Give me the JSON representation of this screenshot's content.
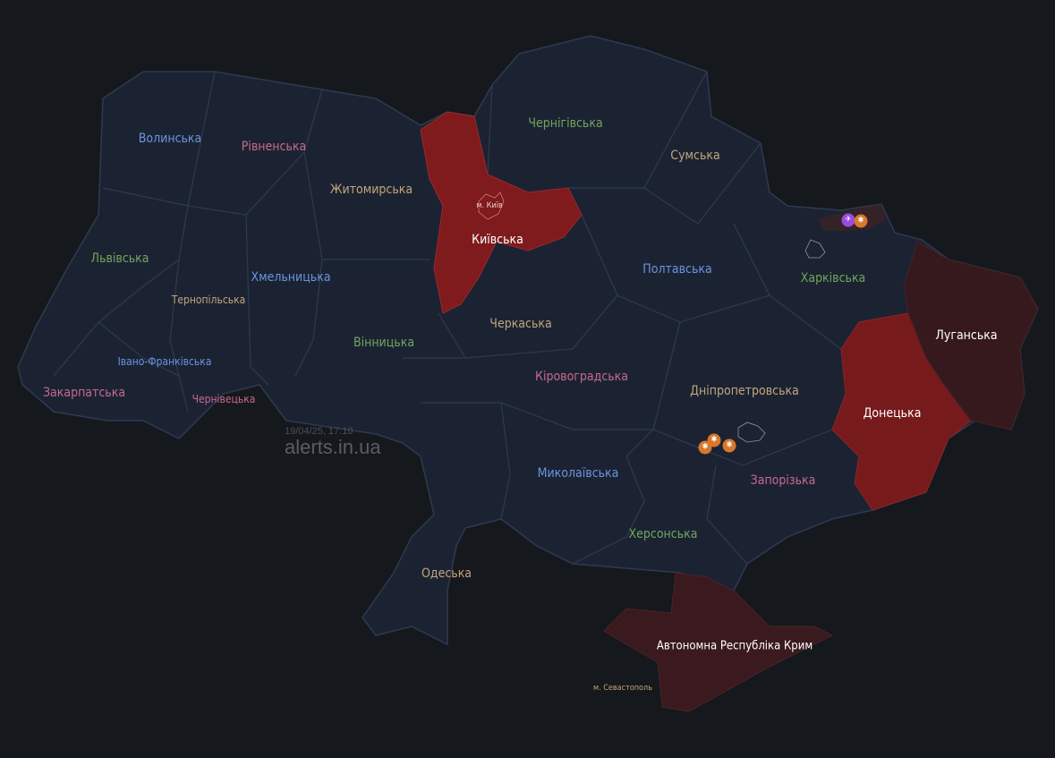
{
  "timestamp": "19/04/25, 17:10",
  "brand": "alerts.in.ua",
  "colors": {
    "background": "#15181d",
    "region": "#1b2333",
    "border": "#2f3a4e",
    "alert_active": "#7f1a1d",
    "alert_occupied": "#36191d",
    "threat_drone": "#d9772c",
    "threat_missile": "#9b4be0"
  },
  "regions": [
    {
      "name": "Волинська",
      "status": "calm",
      "label_color": "#6b93dd"
    },
    {
      "name": "Рівненська",
      "status": "calm",
      "label_color": "#c9688c"
    },
    {
      "name": "Житомирська",
      "status": "calm",
      "label_color": "#c3a57a"
    },
    {
      "name": "Чернігівська",
      "status": "calm",
      "label_color": "#74a45c"
    },
    {
      "name": "Сумська",
      "status": "calm",
      "label_color": "#c3a57a"
    },
    {
      "name": "Львівська",
      "status": "calm",
      "label_color": "#74a45c"
    },
    {
      "name": "Хмельницька",
      "status": "calm",
      "label_color": "#6b93dd"
    },
    {
      "name": "Тернопільська",
      "status": "calm",
      "label_color": "#c3a57a"
    },
    {
      "name": "Київська",
      "status": "alert",
      "label_color": "#ffffff"
    },
    {
      "name": "м. Київ",
      "status": "alert",
      "label_color": "#f3d0d0"
    },
    {
      "name": "Полтавська",
      "status": "calm",
      "label_color": "#6b93dd"
    },
    {
      "name": "Харківська",
      "status": "calm",
      "label_color": "#74a45c"
    },
    {
      "name": "Луганська",
      "status": "occupied",
      "label_color": "#ffffff"
    },
    {
      "name": "Черкаська",
      "status": "calm",
      "label_color": "#c3a57a"
    },
    {
      "name": "Вінницька",
      "status": "calm",
      "label_color": "#74a45c"
    },
    {
      "name": "Івано-Франківська",
      "status": "calm",
      "label_color": "#6b93dd"
    },
    {
      "name": "Закарпатська",
      "status": "calm",
      "label_color": "#c9688c"
    },
    {
      "name": "Чернівецька",
      "status": "calm",
      "label_color": "#c9688c"
    },
    {
      "name": "Кіровоградська",
      "status": "calm",
      "label_color": "#c9688c"
    },
    {
      "name": "Дніпропетровська",
      "status": "calm",
      "label_color": "#c3a57a"
    },
    {
      "name": "Донецька",
      "status": "alert",
      "label_color": "#ffffff"
    },
    {
      "name": "Миколаївська",
      "status": "calm",
      "label_color": "#6b93dd"
    },
    {
      "name": "Запорізька",
      "status": "calm",
      "label_color": "#c9688c"
    },
    {
      "name": "Херсонська",
      "status": "calm",
      "label_color": "#74a45c"
    },
    {
      "name": "Одеська",
      "status": "calm",
      "label_color": "#c3a57a"
    },
    {
      "name": "Автономна Республіка Крим",
      "status": "occupied",
      "label_color": "#ffffff"
    },
    {
      "name": "м. Севастополь",
      "status": "occupied",
      "label_color": "#c3a57a"
    }
  ],
  "threat_icons": [
    {
      "type": "missile",
      "icon": "missile-icon",
      "area": "Харківська"
    },
    {
      "type": "drone",
      "icon": "drone-icon",
      "area": "Харківська"
    },
    {
      "type": "drone",
      "icon": "drone-icon",
      "area": "Дніпропетровська"
    },
    {
      "type": "drone",
      "icon": "drone-icon",
      "area": "Дніпропетровська"
    },
    {
      "type": "drone",
      "icon": "drone-icon",
      "area": "Дніпропетровська"
    }
  ]
}
